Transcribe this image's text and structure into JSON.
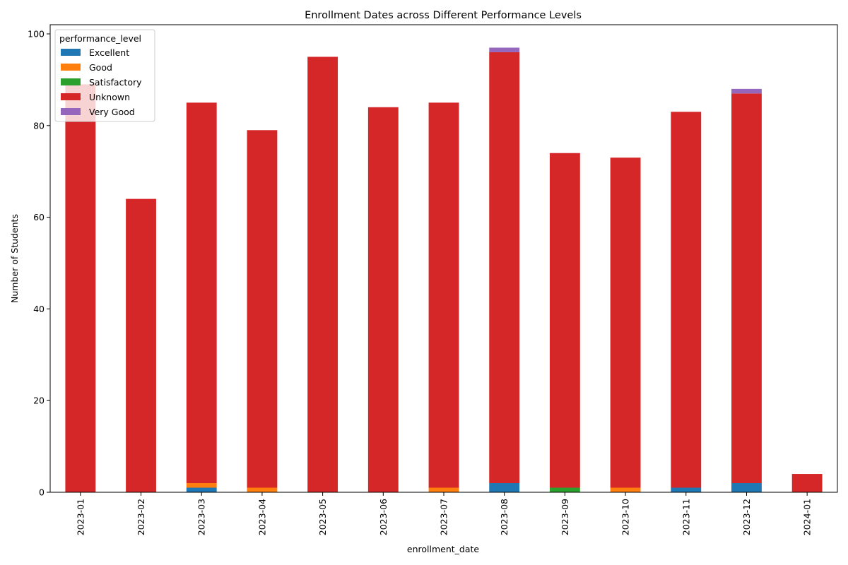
{
  "chart_data": {
    "type": "bar",
    "stacked": true,
    "title": "Enrollment Dates across Different Performance Levels",
    "xlabel": "enrollment_date",
    "ylabel": "Number of Students",
    "ylim": [
      0,
      102
    ],
    "yticks": [
      0,
      20,
      40,
      60,
      80,
      100
    ],
    "grid": false,
    "legend": {
      "title": "performance_level",
      "placement": "top-left"
    },
    "categories": [
      "2023-01",
      "2023-02",
      "2023-03",
      "2023-04",
      "2023-05",
      "2023-06",
      "2023-07",
      "2023-08",
      "2023-09",
      "2023-10",
      "2023-11",
      "2023-12",
      "2024-01"
    ],
    "series": [
      {
        "name": "Excellent",
        "color": "#1f77b4",
        "values": [
          0,
          0,
          1,
          0,
          0,
          0,
          0,
          2,
          0,
          0,
          1,
          2,
          0
        ]
      },
      {
        "name": "Good",
        "color": "#ff7f0e",
        "values": [
          0,
          0,
          1,
          1,
          0,
          0,
          1,
          0,
          0,
          1,
          0,
          0,
          0
        ]
      },
      {
        "name": "Satisfactory",
        "color": "#2ca02c",
        "values": [
          0,
          0,
          0,
          0,
          0,
          0,
          0,
          0,
          1,
          0,
          0,
          0,
          0
        ]
      },
      {
        "name": "Unknown",
        "color": "#d62728",
        "values": [
          89,
          64,
          83,
          78,
          95,
          84,
          84,
          94,
          73,
          72,
          82,
          85,
          4
        ]
      },
      {
        "name": "Very Good",
        "color": "#9467bd",
        "values": [
          0,
          0,
          0,
          0,
          0,
          0,
          0,
          1,
          0,
          0,
          0,
          1,
          0
        ]
      }
    ]
  }
}
